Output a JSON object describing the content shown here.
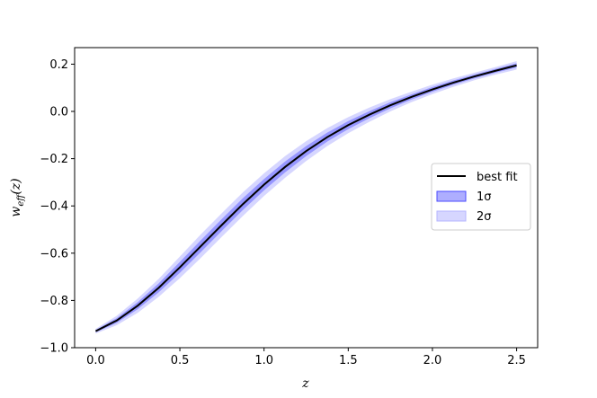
{
  "chart_data": {
    "type": "line",
    "xlabel": "z",
    "ylabel": "w_eff(z)",
    "xlim": [
      -0.125,
      2.625
    ],
    "ylim": [
      -1.0,
      0.27
    ],
    "xticks": [
      0.0,
      0.5,
      1.0,
      1.5,
      2.0,
      2.5
    ],
    "xtick_labels": [
      "0.0",
      "0.5",
      "1.0",
      "1.5",
      "2.0",
      "2.5"
    ],
    "yticks": [
      -1.0,
      -0.8,
      -0.6,
      -0.4,
      -0.2,
      0.0,
      0.2
    ],
    "ytick_labels": [
      "−1.0",
      "−0.8",
      "−0.6",
      "−0.4",
      "−0.2",
      "0.0",
      "0.2"
    ],
    "grid": false,
    "legend_position": "center-right",
    "colors": {
      "line": "#000000",
      "band1": "#4b4bff",
      "band2": "#b4b4ff"
    },
    "x": [
      0.0,
      0.125,
      0.25,
      0.375,
      0.5,
      0.625,
      0.75,
      0.875,
      1.0,
      1.125,
      1.25,
      1.375,
      1.5,
      1.625,
      1.75,
      1.875,
      2.0,
      2.125,
      2.25,
      2.375,
      2.5
    ],
    "series": [
      {
        "name": "best fit",
        "role": "line",
        "values": [
          -0.93,
          -0.885,
          -0.822,
          -0.746,
          -0.66,
          -0.57,
          -0.48,
          -0.392,
          -0.31,
          -0.235,
          -0.168,
          -0.109,
          -0.058,
          -0.014,
          0.026,
          0.061,
          0.093,
          0.122,
          0.148,
          0.172,
          0.195
        ]
      },
      {
        "name": "1σ",
        "role": "band",
        "lower": [
          -0.935,
          -0.895,
          -0.837,
          -0.765,
          -0.683,
          -0.595,
          -0.505,
          -0.417,
          -0.334,
          -0.258,
          -0.189,
          -0.128,
          -0.075,
          -0.029,
          0.013,
          0.05,
          0.083,
          0.113,
          0.14,
          0.164,
          0.186
        ],
        "upper": [
          -0.925,
          -0.875,
          -0.807,
          -0.727,
          -0.637,
          -0.545,
          -0.455,
          -0.367,
          -0.286,
          -0.212,
          -0.147,
          -0.09,
          -0.041,
          0.001,
          0.039,
          0.072,
          0.103,
          0.131,
          0.156,
          0.18,
          0.204
        ]
      },
      {
        "name": "2σ",
        "role": "band",
        "lower": [
          -0.94,
          -0.905,
          -0.852,
          -0.784,
          -0.706,
          -0.62,
          -0.53,
          -0.442,
          -0.358,
          -0.281,
          -0.21,
          -0.147,
          -0.092,
          -0.044,
          0.0,
          0.039,
          0.073,
          0.104,
          0.132,
          0.156,
          0.177
        ],
        "upper": [
          -0.92,
          -0.865,
          -0.792,
          -0.708,
          -0.614,
          -0.52,
          -0.43,
          -0.342,
          -0.262,
          -0.189,
          -0.126,
          -0.071,
          -0.024,
          0.016,
          0.052,
          0.083,
          0.113,
          0.14,
          0.164,
          0.188,
          0.213
        ]
      }
    ]
  }
}
